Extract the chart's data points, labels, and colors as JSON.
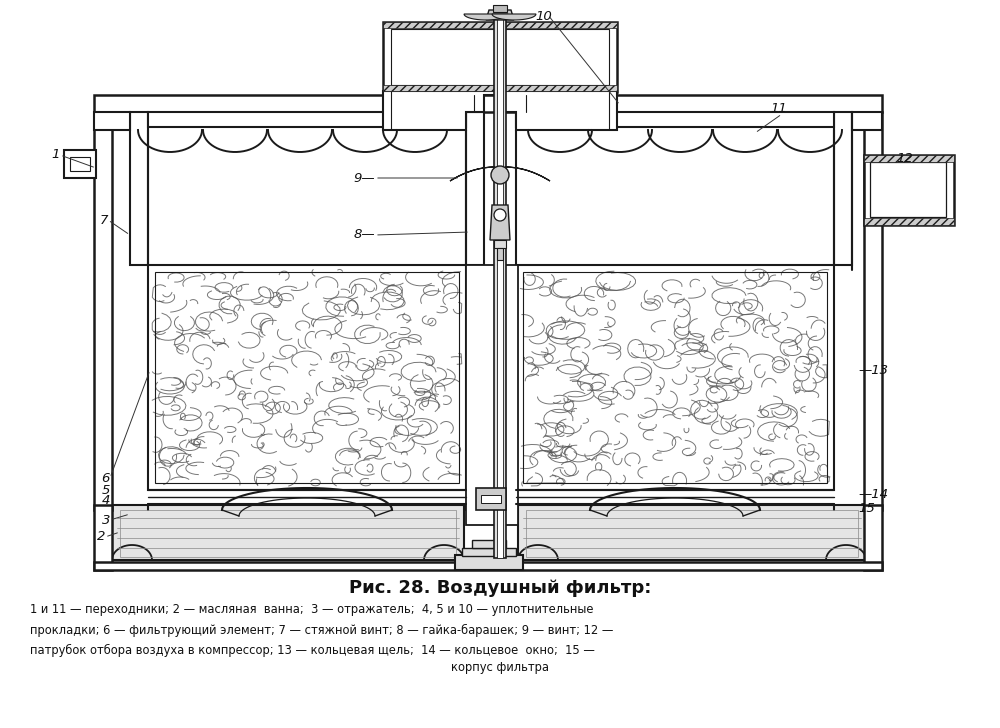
{
  "title": "Рис. 28. Воздушный фильтр:",
  "cap1": "1 и 11 — переходники; 2 — масляная  ванна;  3 — отражатель;  4, 5 и 10 — уплотнительные",
  "cap2": "прокладки; 6 — фильтрующий элемент; 7 — стяжной винт; 8 — гайка-барашек; 9 — винт; 12 —",
  "cap3": "патрубок отбора воздуха в компрессор; 13 — кольцевая щель;  14 — кольцевое  окно;  15 —",
  "cap4": "корпус фильтра",
  "lc": "#1a1a1a",
  "fc_white": "#ffffff",
  "fc_gray": "#d8d8d8",
  "fc_lgray": "#ebebeb",
  "figsize": [
    10.0,
    7.28
  ],
  "dpi": 100
}
